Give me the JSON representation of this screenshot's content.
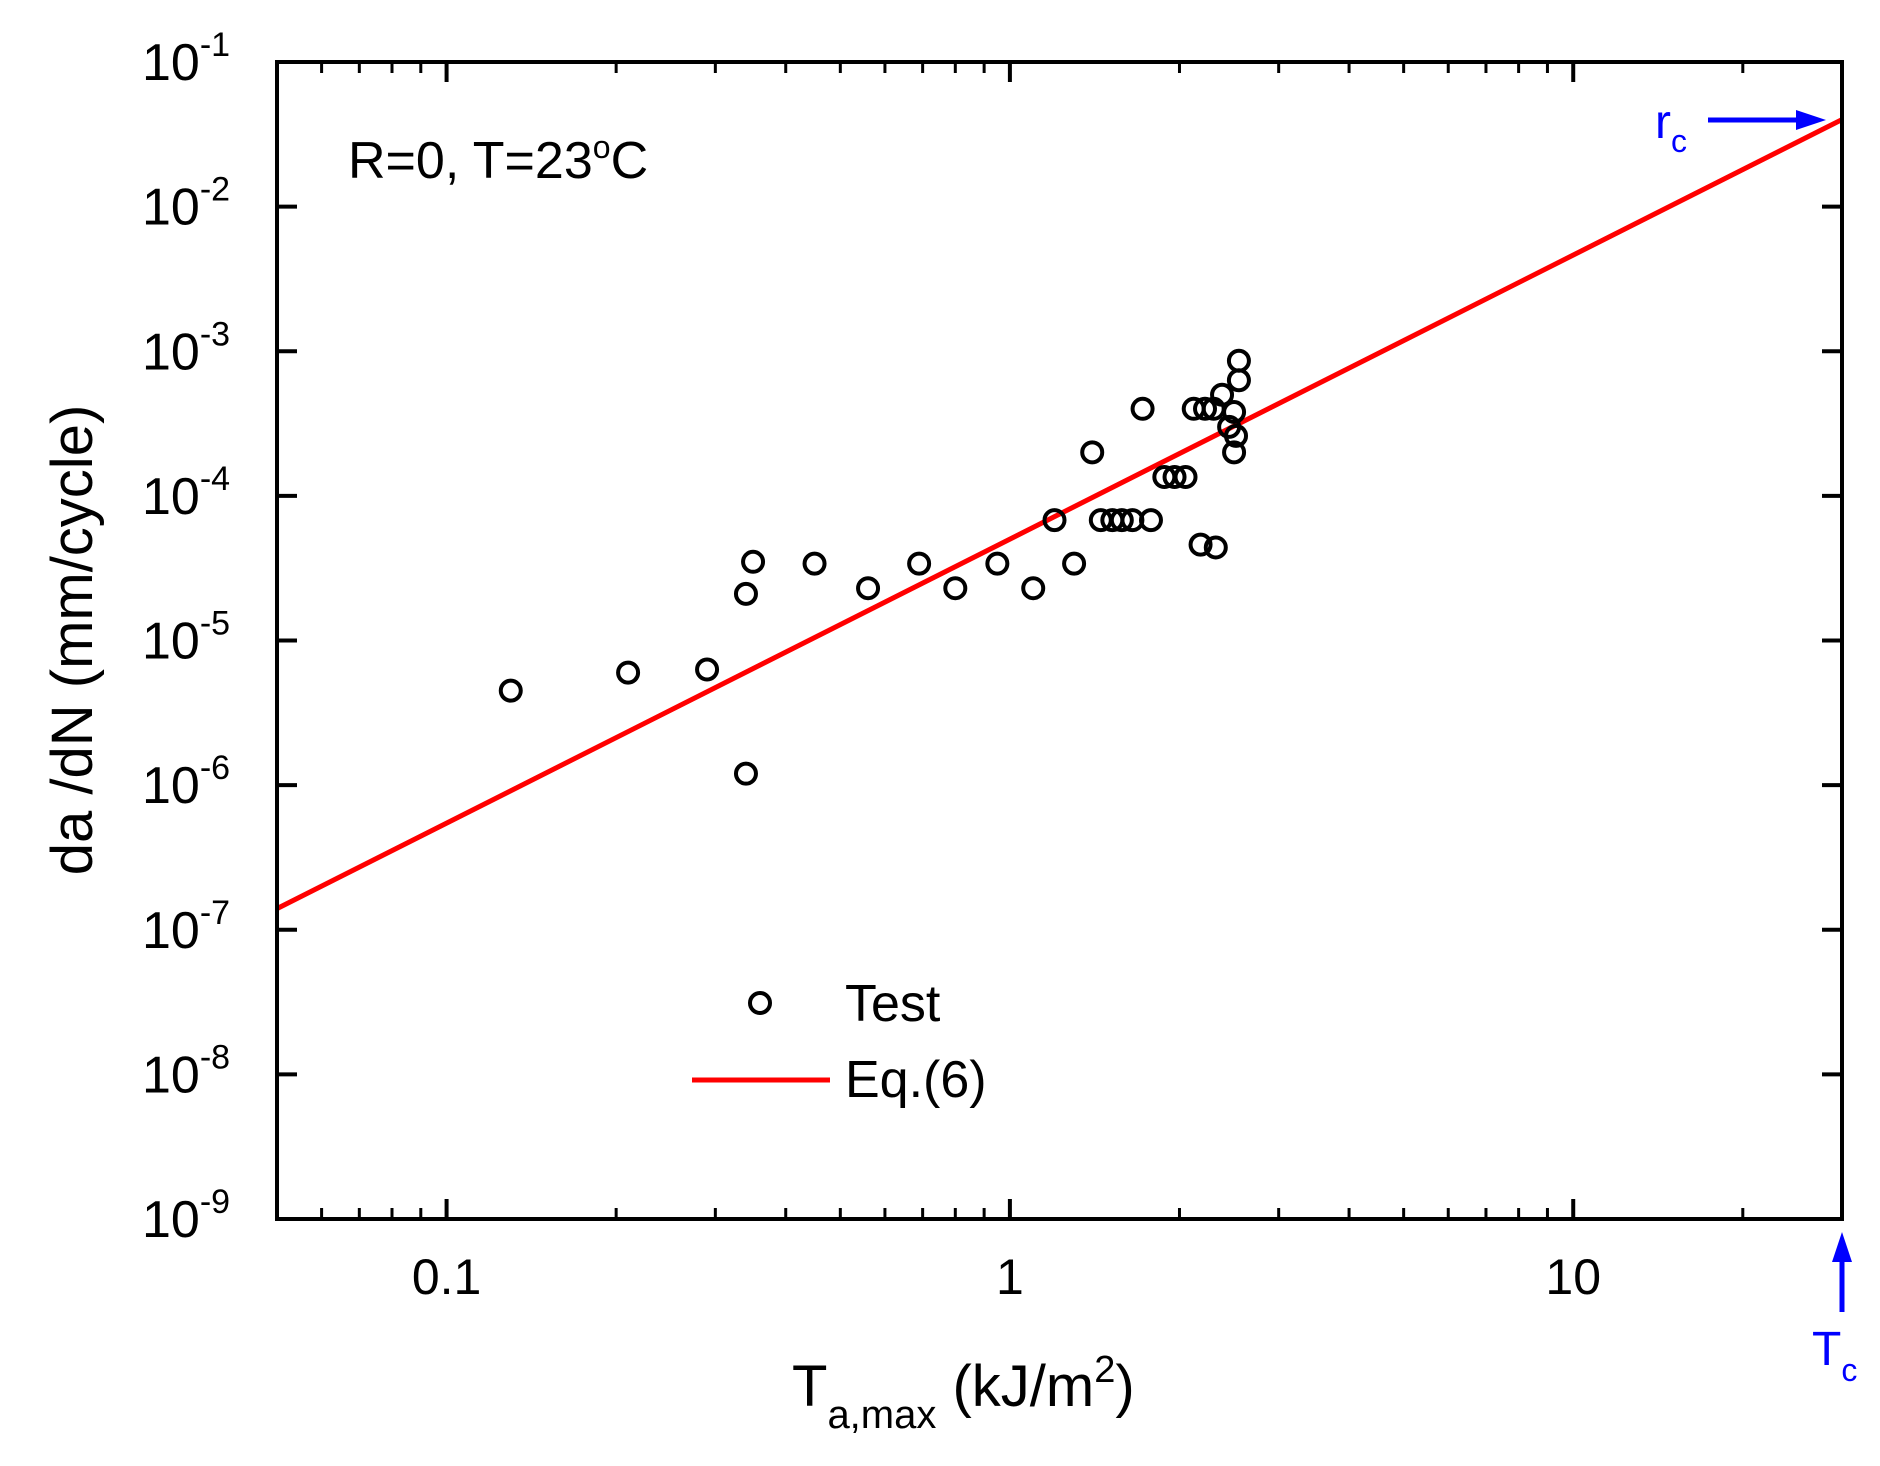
{
  "chart_data": {
    "type": "scatter",
    "x_scale": "log",
    "y_scale": "log",
    "xlim": [
      0.05,
      30
    ],
    "ylim": [
      1e-09,
      0.1
    ],
    "x_ticks": [
      {
        "value": 0.1,
        "label": "0.1"
      },
      {
        "value": 1,
        "label": "1"
      },
      {
        "value": 10,
        "label": "10"
      }
    ],
    "y_ticks": [
      {
        "value": 0.1,
        "exp": "-1"
      },
      {
        "value": 0.01,
        "exp": "-2"
      },
      {
        "value": 0.001,
        "exp": "-3"
      },
      {
        "value": 0.0001,
        "exp": "-4"
      },
      {
        "value": 1e-05,
        "exp": "-5"
      },
      {
        "value": 1e-06,
        "exp": "-6"
      },
      {
        "value": 1e-07,
        "exp": "-7"
      },
      {
        "value": 1e-08,
        "exp": "-8"
      },
      {
        "value": 1e-09,
        "exp": "-9"
      }
    ],
    "tick_base": "10",
    "xlabel": {
      "main": "T",
      "sub": "a,max",
      "unit_pre": " (kJ/m",
      "sup": "2",
      "unit_post": ")"
    },
    "ylabel": "da /dN (mm/cycle)",
    "annotation": {
      "pre": "R=0, T=23",
      "sup": "o",
      "post": "C"
    },
    "series": [
      {
        "name": "Test",
        "kind": "scatter",
        "marker": "open-circle",
        "color": "#000000",
        "points": [
          [
            0.13,
            4.5e-06
          ],
          [
            0.21,
            6e-06
          ],
          [
            0.29,
            6.3e-06
          ],
          [
            0.34,
            1.2e-06
          ],
          [
            0.34,
            2.1e-05
          ],
          [
            0.35,
            3.5e-05
          ],
          [
            0.45,
            3.4e-05
          ],
          [
            0.56,
            2.3e-05
          ],
          [
            0.69,
            3.4e-05
          ],
          [
            0.8,
            2.3e-05
          ],
          [
            0.95,
            3.4e-05
          ],
          [
            1.1,
            2.3e-05
          ],
          [
            1.2,
            6.8e-05
          ],
          [
            1.3,
            3.4e-05
          ],
          [
            1.4,
            0.0002
          ],
          [
            1.45,
            6.8e-05
          ],
          [
            1.52,
            6.8e-05
          ],
          [
            1.58,
            6.8e-05
          ],
          [
            1.65,
            6.8e-05
          ],
          [
            1.72,
            0.0004
          ],
          [
            1.78,
            6.8e-05
          ],
          [
            1.88,
            0.000135
          ],
          [
            1.96,
            0.000135
          ],
          [
            2.05,
            0.000135
          ],
          [
            2.12,
            0.0004
          ],
          [
            2.18,
            4.6e-05
          ],
          [
            2.22,
            0.0004
          ],
          [
            2.3,
            0.0004
          ],
          [
            2.32,
            4.4e-05
          ],
          [
            2.38,
            0.0005
          ],
          [
            2.45,
            0.0003
          ],
          [
            2.5,
            0.0002
          ],
          [
            2.5,
            0.00038
          ],
          [
            2.52,
            0.00026
          ],
          [
            2.55,
            0.00063
          ],
          [
            2.55,
            0.00086
          ]
        ]
      },
      {
        "name": "Eq.(6)",
        "kind": "line",
        "color": "#ff0000",
        "points": [
          [
            0.05,
            1.4e-07
          ],
          [
            30,
            0.04
          ]
        ]
      }
    ],
    "legend": {
      "position": "bottom-center",
      "entries": [
        "Test",
        "Eq.(6)"
      ]
    },
    "markers": [
      {
        "label": "r",
        "sub": "c",
        "type": "arrow-right",
        "color": "#0000ff",
        "target_y": 0.04
      },
      {
        "label": "T",
        "sub": "c",
        "type": "arrow-up",
        "color": "#0000ff",
        "target_x": 30
      }
    ]
  }
}
